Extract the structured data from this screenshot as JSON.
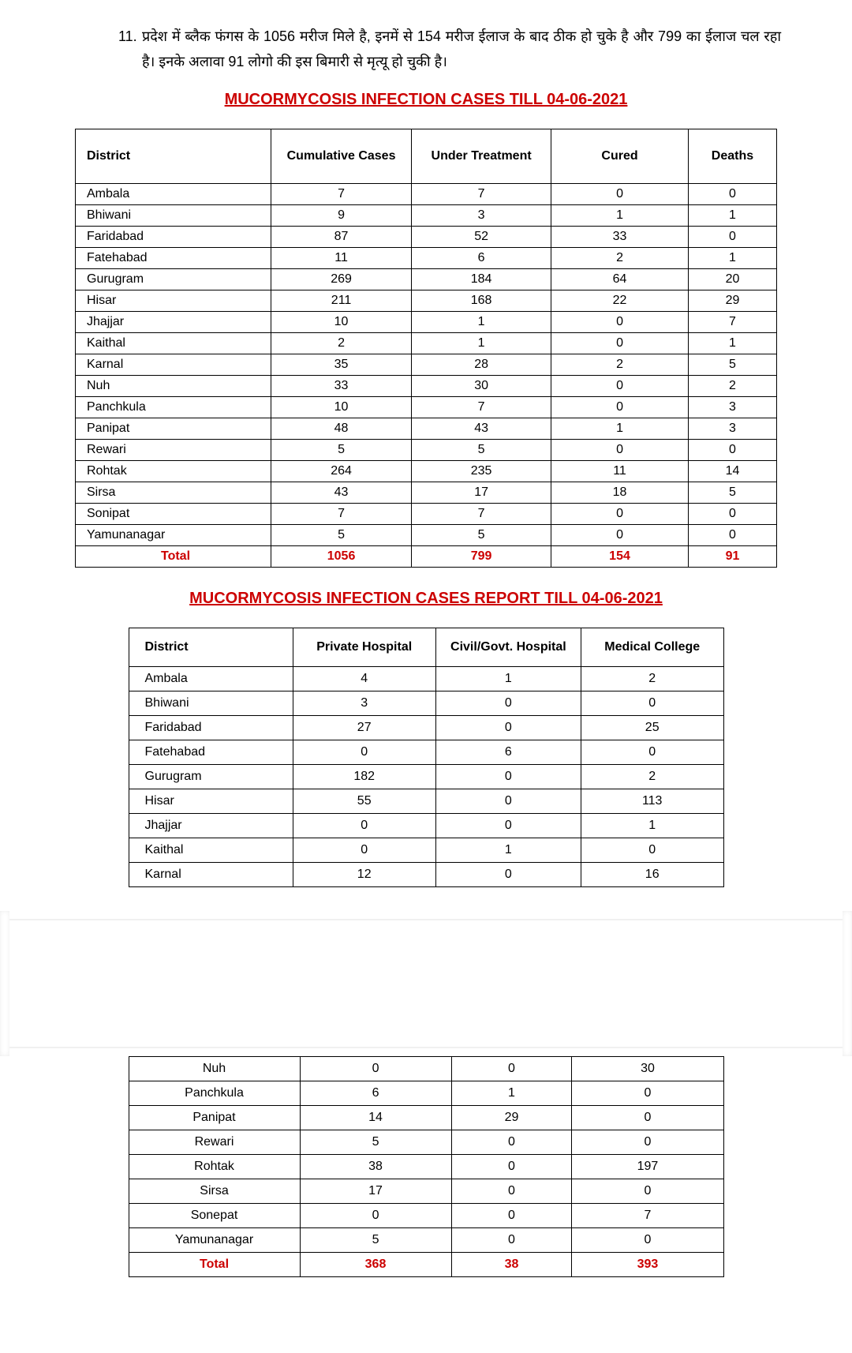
{
  "bullet": {
    "number": "11.",
    "text": "प्रदेश में ब्लैक फंगस के 1056 मरीज मिले है, इनमें से 154 मरीज ईलाज के बाद ठीक हो चुके है और 799 का ईलाज चल रहा है। इनके अलावा 91 लोगो की इस बिमारी से मृत्यू हो चुकी है।"
  },
  "table1": {
    "title": "MUCORMYCOSIS INFECTION CASES TILL 04-06-2021",
    "columns": [
      "District",
      "Cumulative Cases",
      "Under Treatment",
      "Cured",
      "Deaths"
    ],
    "rows": [
      [
        "Ambala",
        "7",
        "7",
        "0",
        "0"
      ],
      [
        "Bhiwani",
        "9",
        "3",
        "1",
        "1"
      ],
      [
        "Faridabad",
        "87",
        "52",
        "33",
        "0"
      ],
      [
        "Fatehabad",
        "11",
        "6",
        "2",
        "1"
      ],
      [
        "Gurugram",
        "269",
        "184",
        "64",
        "20"
      ],
      [
        "Hisar",
        "211",
        "168",
        "22",
        "29"
      ],
      [
        "Jhajjar",
        "10",
        "1",
        "0",
        "7"
      ],
      [
        "Kaithal",
        "2",
        "1",
        "0",
        "1"
      ],
      [
        "Karnal",
        "35",
        "28",
        "2",
        "5"
      ],
      [
        "Nuh",
        "33",
        "30",
        "0",
        "2"
      ],
      [
        "Panchkula",
        "10",
        "7",
        "0",
        "3"
      ],
      [
        "Panipat",
        "48",
        "43",
        "1",
        "3"
      ],
      [
        "Rewari",
        "5",
        "5",
        "0",
        "0"
      ],
      [
        "Rohtak",
        "264",
        "235",
        "11",
        "14"
      ],
      [
        "Sirsa",
        "43",
        "17",
        "18",
        "5"
      ],
      [
        "Sonipat",
        "7",
        "7",
        "0",
        "0"
      ],
      [
        "Yamunanagar",
        "5",
        "5",
        "0",
        "0"
      ]
    ],
    "total": [
      "Total",
      "1056",
      "799",
      "154",
      "91"
    ]
  },
  "table2": {
    "title": "MUCORMYCOSIS INFECTION CASES REPORT TILL 04-06-2021",
    "columns": [
      "District",
      "Private Hospital",
      "Civil/Govt. Hospital",
      "Medical College"
    ],
    "rows_top": [
      [
        "Ambala",
        "4",
        "1",
        "2"
      ],
      [
        "Bhiwani",
        "3",
        "0",
        "0"
      ],
      [
        "Faridabad",
        "27",
        "0",
        "25"
      ],
      [
        "Fatehabad",
        "0",
        "6",
        "0"
      ],
      [
        "Gurugram",
        "182",
        "0",
        "2"
      ],
      [
        "Hisar",
        "55",
        "0",
        "113"
      ],
      [
        "Jhajjar",
        "0",
        "0",
        "1"
      ],
      [
        "Kaithal",
        "0",
        "1",
        "0"
      ],
      [
        "Karnal",
        "12",
        "0",
        "16"
      ]
    ],
    "rows_bottom": [
      [
        "Nuh",
        "0",
        "0",
        "30"
      ],
      [
        "Panchkula",
        "6",
        "1",
        "0"
      ],
      [
        "Panipat",
        "14",
        "29",
        "0"
      ],
      [
        "Rewari",
        "5",
        "0",
        "0"
      ],
      [
        "Rohtak",
        "38",
        "0",
        "197"
      ],
      [
        "Sirsa",
        "17",
        "0",
        "0"
      ],
      [
        "Sonepat",
        "0",
        "0",
        "7"
      ],
      [
        "Yamunanagar",
        "5",
        "0",
        "0"
      ]
    ],
    "total": [
      "Total",
      "368",
      "38",
      "393"
    ]
  },
  "colors": {
    "accent": "#cc0000"
  }
}
